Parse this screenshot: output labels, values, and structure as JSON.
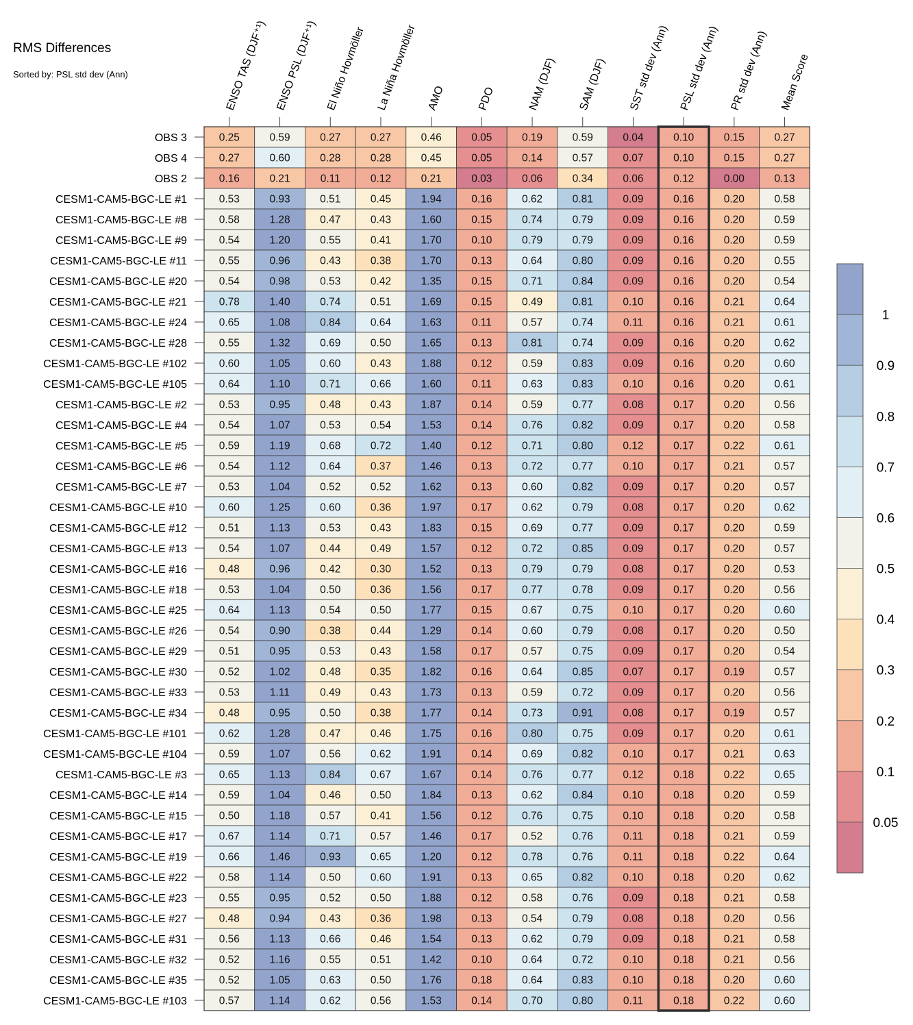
{
  "title": "RMS Differences",
  "subtitle": "Sorted by: PSL std dev (Ann)",
  "chart_data": {
    "type": "heatmap",
    "title": "RMS Differences",
    "subtitle": "Sorted by: PSL std dev (Ann)",
    "highlight_column": "PSL std dev (Ann)",
    "columns": [
      "ENSO TAS (DJF⁺¹)",
      "ENSO PSL (DJF⁺¹)",
      "El Niño Hovmöller",
      "La Niña Hovmöller",
      "AMO",
      "PDO",
      "NAM (DJF)",
      "SAM (DJF)",
      "SST std dev (Ann)",
      "PSL std dev (Ann)",
      "PR std dev (Ann)",
      "Mean Score"
    ],
    "rows": [
      "OBS 3",
      "OBS 4",
      "OBS 2",
      "CESM1-CAM5-BGC-LE #1",
      "CESM1-CAM5-BGC-LE #8",
      "CESM1-CAM5-BGC-LE #9",
      "CESM1-CAM5-BGC-LE #11",
      "CESM1-CAM5-BGC-LE #20",
      "CESM1-CAM5-BGC-LE #21",
      "CESM1-CAM5-BGC-LE #24",
      "CESM1-CAM5-BGC-LE #28",
      "CESM1-CAM5-BGC-LE #102",
      "CESM1-CAM5-BGC-LE #105",
      "CESM1-CAM5-BGC-LE #2",
      "CESM1-CAM5-BGC-LE #4",
      "CESM1-CAM5-BGC-LE #5",
      "CESM1-CAM5-BGC-LE #6",
      "CESM1-CAM5-BGC-LE #7",
      "CESM1-CAM5-BGC-LE #10",
      "CESM1-CAM5-BGC-LE #12",
      "CESM1-CAM5-BGC-LE #13",
      "CESM1-CAM5-BGC-LE #16",
      "CESM1-CAM5-BGC-LE #18",
      "CESM1-CAM5-BGC-LE #25",
      "CESM1-CAM5-BGC-LE #26",
      "CESM1-CAM5-BGC-LE #29",
      "CESM1-CAM5-BGC-LE #30",
      "CESM1-CAM5-BGC-LE #33",
      "CESM1-CAM5-BGC-LE #34",
      "CESM1-CAM5-BGC-LE #101",
      "CESM1-CAM5-BGC-LE #104",
      "CESM1-CAM5-BGC-LE #3",
      "CESM1-CAM5-BGC-LE #14",
      "CESM1-CAM5-BGC-LE #15",
      "CESM1-CAM5-BGC-LE #17",
      "CESM1-CAM5-BGC-LE #19",
      "CESM1-CAM5-BGC-LE #22",
      "CESM1-CAM5-BGC-LE #23",
      "CESM1-CAM5-BGC-LE #27",
      "CESM1-CAM5-BGC-LE #31",
      "CESM1-CAM5-BGC-LE #32",
      "CESM1-CAM5-BGC-LE #35",
      "CESM1-CAM5-BGC-LE #103"
    ],
    "values": [
      [
        "0.25",
        "0.59",
        "0.27",
        "0.27",
        "0.46",
        "0.05",
        "0.19",
        "0.59",
        "0.04",
        "0.10",
        "0.15",
        "0.27"
      ],
      [
        "0.27",
        "0.60",
        "0.28",
        "0.28",
        "0.45",
        "0.05",
        "0.14",
        "0.57",
        "0.07",
        "0.10",
        "0.15",
        "0.27"
      ],
      [
        "0.16",
        "0.21",
        "0.11",
        "0.12",
        "0.21",
        "0.03",
        "0.06",
        "0.34",
        "0.06",
        "0.12",
        "0.00",
        "0.13"
      ],
      [
        "0.53",
        "0.93",
        "0.51",
        "0.45",
        "1.94",
        "0.16",
        "0.62",
        "0.81",
        "0.09",
        "0.16",
        "0.20",
        "0.58"
      ],
      [
        "0.58",
        "1.28",
        "0.47",
        "0.43",
        "1.60",
        "0.15",
        "0.74",
        "0.79",
        "0.09",
        "0.16",
        "0.20",
        "0.59"
      ],
      [
        "0.54",
        "1.20",
        "0.55",
        "0.41",
        "1.70",
        "0.10",
        "0.79",
        "0.79",
        "0.09",
        "0.16",
        "0.20",
        "0.59"
      ],
      [
        "0.55",
        "0.96",
        "0.43",
        "0.38",
        "1.70",
        "0.13",
        "0.64",
        "0.80",
        "0.09",
        "0.16",
        "0.20",
        "0.55"
      ],
      [
        "0.54",
        "0.98",
        "0.53",
        "0.42",
        "1.35",
        "0.15",
        "0.71",
        "0.84",
        "0.09",
        "0.16",
        "0.20",
        "0.54"
      ],
      [
        "0.78",
        "1.40",
        "0.74",
        "0.51",
        "1.69",
        "0.15",
        "0.49",
        "0.81",
        "0.10",
        "0.16",
        "0.21",
        "0.64"
      ],
      [
        "0.65",
        "1.08",
        "0.84",
        "0.64",
        "1.63",
        "0.11",
        "0.57",
        "0.74",
        "0.11",
        "0.16",
        "0.21",
        "0.61"
      ],
      [
        "0.55",
        "1.32",
        "0.69",
        "0.50",
        "1.65",
        "0.13",
        "0.81",
        "0.74",
        "0.09",
        "0.16",
        "0.20",
        "0.62"
      ],
      [
        "0.60",
        "1.05",
        "0.60",
        "0.43",
        "1.88",
        "0.12",
        "0.59",
        "0.83",
        "0.09",
        "0.16",
        "0.20",
        "0.60"
      ],
      [
        "0.64",
        "1.10",
        "0.71",
        "0.66",
        "1.60",
        "0.11",
        "0.63",
        "0.83",
        "0.10",
        "0.16",
        "0.20",
        "0.61"
      ],
      [
        "0.53",
        "0.95",
        "0.48",
        "0.43",
        "1.87",
        "0.14",
        "0.59",
        "0.77",
        "0.08",
        "0.17",
        "0.20",
        "0.56"
      ],
      [
        "0.54",
        "1.07",
        "0.53",
        "0.54",
        "1.53",
        "0.14",
        "0.76",
        "0.82",
        "0.09",
        "0.17",
        "0.20",
        "0.58"
      ],
      [
        "0.59",
        "1.19",
        "0.68",
        "0.72",
        "1.40",
        "0.12",
        "0.71",
        "0.80",
        "0.12",
        "0.17",
        "0.22",
        "0.61"
      ],
      [
        "0.54",
        "1.12",
        "0.64",
        "0.37",
        "1.46",
        "0.13",
        "0.72",
        "0.77",
        "0.10",
        "0.17",
        "0.21",
        "0.57"
      ],
      [
        "0.53",
        "1.04",
        "0.52",
        "0.52",
        "1.62",
        "0.13",
        "0.60",
        "0.82",
        "0.09",
        "0.17",
        "0.20",
        "0.57"
      ],
      [
        "0.60",
        "1.25",
        "0.60",
        "0.36",
        "1.97",
        "0.17",
        "0.62",
        "0.79",
        "0.08",
        "0.17",
        "0.20",
        "0.62"
      ],
      [
        "0.51",
        "1.13",
        "0.53",
        "0.43",
        "1.83",
        "0.15",
        "0.69",
        "0.77",
        "0.09",
        "0.17",
        "0.20",
        "0.59"
      ],
      [
        "0.54",
        "1.07",
        "0.44",
        "0.49",
        "1.57",
        "0.12",
        "0.72",
        "0.85",
        "0.09",
        "0.17",
        "0.20",
        "0.57"
      ],
      [
        "0.48",
        "0.96",
        "0.42",
        "0.30",
        "1.52",
        "0.13",
        "0.79",
        "0.79",
        "0.08",
        "0.17",
        "0.20",
        "0.53"
      ],
      [
        "0.53",
        "1.04",
        "0.50",
        "0.36",
        "1.56",
        "0.17",
        "0.77",
        "0.78",
        "0.09",
        "0.17",
        "0.20",
        "0.56"
      ],
      [
        "0.64",
        "1.13",
        "0.54",
        "0.50",
        "1.77",
        "0.15",
        "0.67",
        "0.75",
        "0.10",
        "0.17",
        "0.20",
        "0.60"
      ],
      [
        "0.54",
        "0.90",
        "0.38",
        "0.44",
        "1.29",
        "0.14",
        "0.60",
        "0.79",
        "0.08",
        "0.17",
        "0.20",
        "0.50"
      ],
      [
        "0.51",
        "0.95",
        "0.53",
        "0.43",
        "1.58",
        "0.17",
        "0.57",
        "0.75",
        "0.09",
        "0.17",
        "0.20",
        "0.54"
      ],
      [
        "0.52",
        "1.02",
        "0.48",
        "0.35",
        "1.82",
        "0.16",
        "0.64",
        "0.85",
        "0.07",
        "0.17",
        "0.19",
        "0.57"
      ],
      [
        "0.53",
        "1.11",
        "0.49",
        "0.43",
        "1.73",
        "0.13",
        "0.59",
        "0.72",
        "0.09",
        "0.17",
        "0.20",
        "0.56"
      ],
      [
        "0.48",
        "0.95",
        "0.50",
        "0.38",
        "1.77",
        "0.14",
        "0.73",
        "0.91",
        "0.08",
        "0.17",
        "0.19",
        "0.57"
      ],
      [
        "0.62",
        "1.28",
        "0.47",
        "0.46",
        "1.75",
        "0.16",
        "0.80",
        "0.75",
        "0.09",
        "0.17",
        "0.20",
        "0.61"
      ],
      [
        "0.59",
        "1.07",
        "0.56",
        "0.62",
        "1.91",
        "0.14",
        "0.69",
        "0.82",
        "0.10",
        "0.17",
        "0.21",
        "0.63"
      ],
      [
        "0.65",
        "1.13",
        "0.84",
        "0.67",
        "1.67",
        "0.14",
        "0.76",
        "0.77",
        "0.12",
        "0.18",
        "0.22",
        "0.65"
      ],
      [
        "0.59",
        "1.04",
        "0.46",
        "0.50",
        "1.84",
        "0.13",
        "0.62",
        "0.84",
        "0.10",
        "0.18",
        "0.20",
        "0.59"
      ],
      [
        "0.50",
        "1.18",
        "0.57",
        "0.41",
        "1.56",
        "0.12",
        "0.76",
        "0.75",
        "0.10",
        "0.18",
        "0.20",
        "0.58"
      ],
      [
        "0.67",
        "1.14",
        "0.71",
        "0.57",
        "1.46",
        "0.17",
        "0.52",
        "0.76",
        "0.11",
        "0.18",
        "0.21",
        "0.59"
      ],
      [
        "0.66",
        "1.46",
        "0.93",
        "0.65",
        "1.20",
        "0.12",
        "0.78",
        "0.76",
        "0.11",
        "0.18",
        "0.22",
        "0.64"
      ],
      [
        "0.58",
        "1.14",
        "0.50",
        "0.60",
        "1.91",
        "0.13",
        "0.65",
        "0.82",
        "0.10",
        "0.18",
        "0.20",
        "0.62"
      ],
      [
        "0.55",
        "0.95",
        "0.52",
        "0.50",
        "1.88",
        "0.12",
        "0.58",
        "0.76",
        "0.09",
        "0.18",
        "0.21",
        "0.58"
      ],
      [
        "0.48",
        "0.94",
        "0.43",
        "0.36",
        "1.98",
        "0.13",
        "0.54",
        "0.79",
        "0.08",
        "0.18",
        "0.20",
        "0.56"
      ],
      [
        "0.56",
        "1.13",
        "0.66",
        "0.46",
        "1.54",
        "0.13",
        "0.62",
        "0.79",
        "0.09",
        "0.18",
        "0.21",
        "0.58"
      ],
      [
        "0.52",
        "1.16",
        "0.55",
        "0.51",
        "1.42",
        "0.10",
        "0.64",
        "0.72",
        "0.10",
        "0.18",
        "0.21",
        "0.56"
      ],
      [
        "0.52",
        "1.05",
        "0.63",
        "0.50",
        "1.76",
        "0.18",
        "0.64",
        "0.83",
        "0.10",
        "0.18",
        "0.20",
        "0.60"
      ],
      [
        "0.57",
        "1.14",
        "0.62",
        "0.56",
        "1.53",
        "0.14",
        "0.70",
        "0.80",
        "0.11",
        "0.18",
        "0.22",
        "0.60"
      ]
    ],
    "colorbar": {
      "levels": [
        0.05,
        0.1,
        0.2,
        0.3,
        0.4,
        0.5,
        0.6,
        0.7,
        0.8,
        0.9,
        1
      ],
      "tick_labels": [
        "0.05",
        "0.1",
        "0.2",
        "0.3",
        "0.4",
        "0.5",
        "0.6",
        "0.7",
        "0.8",
        "0.9",
        "1"
      ],
      "colors": [
        "#d47d8f",
        "#e68f90",
        "#f1ac98",
        "#f8c7a6",
        "#fde1bb",
        "#fbf0d5",
        "#f3f2ea",
        "#e2eff4",
        "#cde3ee",
        "#b5cde3",
        "#a1b6d6",
        "#93a4cc"
      ]
    }
  }
}
